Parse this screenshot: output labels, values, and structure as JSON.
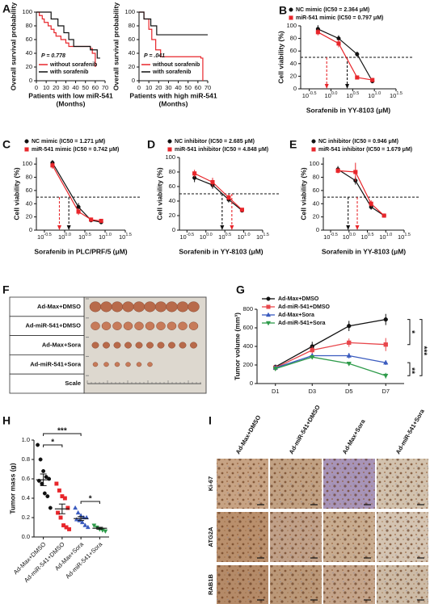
{
  "chart_data": [
    {
      "type": "km",
      "panel": "A",
      "ylabel": "Overall survival probability",
      "xlabel": "Patients with low miR-541",
      "xlabel2": "(Months)",
      "annotation": "P = 0.778",
      "xlim": [
        0,
        70
      ],
      "xticks": [
        0,
        10,
        20,
        30,
        40,
        50,
        60,
        70
      ],
      "ylim": [
        0,
        100
      ],
      "yticks": [
        0,
        20,
        40,
        60,
        80,
        100
      ],
      "series": [
        {
          "name": "without sorafenib",
          "color": "#e8262b",
          "x": [
            0,
            3,
            6,
            8,
            12,
            15,
            18,
            20,
            25,
            30,
            33,
            55,
            57,
            60
          ],
          "values": [
            100,
            95,
            90,
            85,
            80,
            75,
            70,
            65,
            60,
            55,
            50,
            47,
            40,
            20
          ]
        },
        {
          "name": "with sorafenib",
          "color": "#111111",
          "x": [
            0,
            15,
            22,
            28,
            33,
            38,
            55,
            62,
            65
          ],
          "values": [
            100,
            90,
            80,
            70,
            60,
            50,
            45,
            33,
            33
          ]
        }
      ]
    },
    {
      "type": "km",
      "ylabel": "Overall survival probability",
      "xlabel": "Patients with high miR-541",
      "xlabel2": "(Months)",
      "annotation": "P = .041",
      "xlim": [
        0,
        70
      ],
      "xticks": [
        0,
        10,
        20,
        30,
        40,
        50,
        60,
        70
      ],
      "ylim": [
        0,
        100
      ],
      "yticks": [
        0,
        20,
        40,
        60,
        80,
        100
      ],
      "series": [
        {
          "name": "without sorafenib",
          "color": "#e8262b",
          "x": [
            0,
            5,
            10,
            13,
            17,
            22,
            63,
            65
          ],
          "values": [
            100,
            90,
            75,
            60,
            45,
            35,
            33,
            0
          ]
        },
        {
          "name": "with sorafenib",
          "color": "#111111",
          "x": [
            0,
            5,
            12,
            18,
            70
          ],
          "values": [
            100,
            90,
            80,
            67,
            67
          ]
        }
      ]
    },
    {
      "type": "dose",
      "panel": "B",
      "ylabel": "Cell viability (%)",
      "xlabel": "Sorafenib in YY-8103 (μM)",
      "xscale": "log",
      "xtick_base": "10",
      "xlim": [
        0.2,
        31.62
      ],
      "xticks": [
        {
          "value": 0.3162,
          "label": "-0.5"
        },
        {
          "value": 1,
          "label": "0.0"
        },
        {
          "value": 3.162,
          "label": "0.5"
        },
        {
          "value": 10,
          "label": "1.0"
        },
        {
          "value": 31.62,
          "label": "1.5"
        }
      ],
      "ylim": [
        0,
        100
      ],
      "yticks": [
        0,
        20,
        40,
        60,
        80,
        100
      ],
      "hline": 50,
      "series": [
        {
          "name": "NC mimic (IC50 = 2.364 μM)",
          "color": "#111111",
          "marker": "circle",
          "ic50": 2.364,
          "x": [
            0.5,
            1.5,
            4,
            9
          ],
          "values": [
            95,
            80,
            55,
            12
          ],
          "errors": [
            6,
            5,
            4,
            3
          ]
        },
        {
          "name": "miR-541 mimic (IC50 = 0.797 μM)",
          "color": "#e8262b",
          "marker": "square",
          "ic50": 0.797,
          "x": [
            0.5,
            1.5,
            4,
            9
          ],
          "values": [
            90,
            72,
            18,
            14
          ],
          "errors": [
            5,
            6,
            3,
            3
          ]
        }
      ]
    },
    {
      "type": "dose",
      "panel": "C",
      "ylabel": "Cell viability (%)",
      "xlabel": "Sorafenib in PLC/PRF/5 (μM)",
      "xscale": "log",
      "xtick_base": "10",
      "xlim": [
        0.2,
        31.62
      ],
      "xticks": [
        {
          "value": 0.3162,
          "label": "-0.5"
        },
        {
          "value": 1,
          "label": "0.0"
        },
        {
          "value": 3.162,
          "label": "0.5"
        },
        {
          "value": 10,
          "label": "1.0"
        },
        {
          "value": 31.62,
          "label": "1.5"
        }
      ],
      "ylim": [
        0,
        110
      ],
      "yticks": [
        0,
        20,
        40,
        60,
        80,
        100
      ],
      "hline": 50,
      "series": [
        {
          "name": "NC mimic (IC50 = 1.271 μM)",
          "color": "#111111",
          "marker": "circle",
          "ic50": 1.271,
          "x": [
            0.5,
            2.2,
            4.5,
            8
          ],
          "values": [
            102,
            35,
            15,
            12
          ],
          "errors": [
            4,
            6,
            3,
            2
          ]
        },
        {
          "name": "miR-541 mimic (IC50 = 0.742 μM)",
          "color": "#e8262b",
          "marker": "square",
          "ic50": 0.742,
          "x": [
            0.5,
            2.2,
            4.5,
            8
          ],
          "values": [
            98,
            28,
            16,
            14
          ],
          "errors": [
            5,
            5,
            3,
            2
          ]
        }
      ]
    },
    {
      "type": "dose",
      "panel": "D",
      "ylabel": "Cell viability (%)",
      "xlabel": "Sorafenib in YY-8103 (μM)",
      "xscale": "log",
      "xtick_base": "10",
      "xlim": [
        0.2,
        31.62
      ],
      "xticks": [
        {
          "value": 0.3162,
          "label": "-0.5"
        },
        {
          "value": 1,
          "label": "0.0"
        },
        {
          "value": 3.162,
          "label": "0.5"
        },
        {
          "value": 10,
          "label": "1.0"
        },
        {
          "value": 31.62,
          "label": "1.5"
        }
      ],
      "ylim": [
        0,
        100
      ],
      "yticks": [
        0,
        20,
        40,
        60,
        80,
        100
      ],
      "hline": 50,
      "series": [
        {
          "name": "NC inhibitor (IC50 = 2.685 μM)",
          "color": "#111111",
          "marker": "circle",
          "ic50": 2.685,
          "x": [
            0.5,
            1.5,
            4,
            9
          ],
          "values": [
            72,
            62,
            42,
            27
          ],
          "errors": [
            6,
            5,
            4,
            2
          ]
        },
        {
          "name": "miR-541 inhibitor (IC50 = 4.848 μM)",
          "color": "#e8262b",
          "marker": "square",
          "ic50": 4.848,
          "x": [
            0.5,
            1.5,
            4,
            9
          ],
          "values": [
            78,
            66,
            45,
            28
          ],
          "errors": [
            5,
            6,
            4,
            2
          ]
        }
      ]
    },
    {
      "type": "dose",
      "panel": "E",
      "ylabel": "Cell viability (%)",
      "xlabel": "Sorafenib in YY-8103 (μM)",
      "xscale": "log",
      "xtick_base": "10",
      "xlim": [
        0.2,
        31.62
      ],
      "xticks": [
        {
          "value": 0.3162,
          "label": "-0.5"
        },
        {
          "value": 1,
          "label": "0.0"
        },
        {
          "value": 3.162,
          "label": "0.5"
        },
        {
          "value": 10,
          "label": "1.0"
        },
        {
          "value": 31.62,
          "label": "1.5"
        }
      ],
      "ylim": [
        0,
        110
      ],
      "yticks": [
        0,
        20,
        40,
        60,
        80,
        100
      ],
      "hline": 50,
      "series": [
        {
          "name": "NC inhibitor (IC50 = 0.946 μM)",
          "color": "#111111",
          "marker": "circle",
          "ic50": 0.946,
          "x": [
            0.5,
            1.5,
            4,
            9
          ],
          "values": [
            92,
            75,
            35,
            22
          ],
          "errors": [
            5,
            6,
            4,
            2
          ]
        },
        {
          "name": "miR-541 inhibitor (IC50 = 1.679 μM)",
          "color": "#e8262b",
          "marker": "square",
          "ic50": 1.679,
          "x": [
            0.5,
            1.5,
            4,
            9
          ],
          "values": [
            90,
            88,
            40,
            22
          ],
          "errors": [
            4,
            14,
            5,
            2
          ]
        }
      ]
    },
    {
      "type": "line",
      "panel": "G",
      "ylabel": "Tumor volume (mm³)",
      "categories": [
        "D1",
        "D3",
        "D5",
        "D7"
      ],
      "ylim": [
        0,
        800
      ],
      "yticks": [
        0,
        200,
        400,
        600,
        800
      ],
      "annotations": [
        "*",
        "***",
        "**"
      ],
      "series": [
        {
          "name": "Ad-Max+DMSO",
          "color": "#111111",
          "marker": "circle",
          "values": [
            180,
            400,
            620,
            690
          ],
          "errors": [
            20,
            50,
            55,
            60
          ]
        },
        {
          "name": "Ad-miR-541+DMSO",
          "color": "#e8474c",
          "marker": "square",
          "values": [
            170,
            360,
            440,
            420
          ],
          "errors": [
            20,
            40,
            45,
            70
          ]
        },
        {
          "name": "Ad-Max+Sora",
          "color": "#3a5bbf",
          "marker": "triangle",
          "values": [
            170,
            300,
            300,
            225
          ],
          "errors": [
            15,
            25,
            30,
            25
          ]
        },
        {
          "name": "Ad-miR-541+Sora",
          "color": "#2e9b4a",
          "marker": "triangle-down",
          "values": [
            160,
            285,
            215,
            85
          ],
          "errors": [
            15,
            20,
            15,
            30
          ]
        }
      ]
    },
    {
      "type": "dot",
      "panel": "H",
      "ylabel": "Tumor mass (g)",
      "categories": [
        "Ad-Max+DMSO",
        "Ad-miR-541+DMSO",
        "Ad-Max+Sora",
        "Ad-miR-541+Sora"
      ],
      "colors": [
        "#111111",
        "#e8262b",
        "#3a5bbf",
        "#2e9b4a"
      ],
      "markers": [
        "circle",
        "square",
        "triangle",
        "triangle-down"
      ],
      "ylim": [
        0,
        1.0
      ],
      "yticks": [
        {
          "value": 0,
          "label": "0.0"
        },
        0.2,
        0.4,
        0.6,
        0.8,
        {
          "value": 1,
          "label": "1.0"
        }
      ],
      "annotations": [
        "*",
        "***",
        "*"
      ],
      "values": [
        [
          0.95,
          0.8,
          0.68,
          0.62,
          0.6,
          0.58,
          0.55,
          0.45,
          0.42,
          0.3
        ],
        [
          0.55,
          0.48,
          0.42,
          0.4,
          0.3,
          0.25,
          0.2,
          0.12,
          0.1,
          0.08
        ],
        [
          0.3,
          0.25,
          0.22,
          0.2,
          0.2,
          0.18,
          0.17,
          0.15,
          0.12,
          0.1
        ],
        [
          0.12,
          0.1,
          0.08,
          0.07,
          0.06
        ]
      ],
      "means": [
        0.59,
        0.29,
        0.19,
        0.09
      ],
      "errors": [
        0.06,
        0.05,
        0.02,
        0.01
      ]
    }
  ],
  "photo_panel": {
    "panel": "F",
    "rows": [
      {
        "label": "Ad-Max+DMSO",
        "color": "#111111"
      },
      {
        "label": "Ad-miR-541+DMSO",
        "color": "#e8822a"
      },
      {
        "label": "Ad-Max+Sora",
        "color": "#5b3f8c"
      },
      {
        "label": "Ad-miR-541+Sora",
        "color": "#3d7a3a"
      },
      {
        "label": "Scale",
        "color": "#111111"
      }
    ]
  },
  "ihc_panel": {
    "panel": "I",
    "columns": [
      {
        "label": "Ad-Max+DMSO",
        "color": "#111111"
      },
      {
        "label": "Ad-miR-541+DMSO",
        "color": "#e8822a"
      },
      {
        "label": "Ad-Max+Sora",
        "color": "#5b3f8c"
      },
      {
        "label": "Ad-miR-541+Sora",
        "color": "#3d7a3a"
      }
    ],
    "rows": [
      "Ki-67",
      "ATG2A",
      "RAB1B"
    ]
  }
}
